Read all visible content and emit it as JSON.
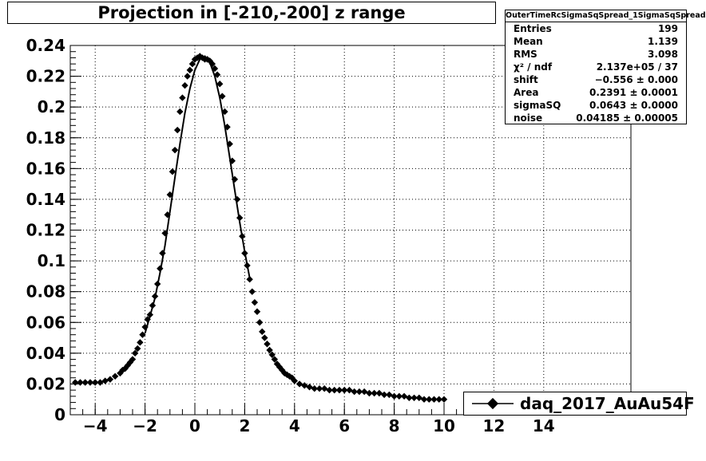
{
  "title": "Projection in [-210,-200] z range",
  "stats": {
    "name": "OuterTimeRcSigmaSqSpread_1SigmaSqSpread",
    "rows": [
      {
        "label": "Entries",
        "value": "199"
      },
      {
        "label": "Mean",
        "value": "1.139"
      },
      {
        "label": "RMS",
        "value": "3.098"
      },
      {
        "label": "χ² / ndf",
        "value": "2.137e+05 / 37"
      },
      {
        "label": "shift",
        "value": "−0.556 ± 0.000"
      },
      {
        "label": "Area",
        "value": "0.2391 ± 0.0001"
      },
      {
        "label": "sigmaSQ",
        "value": "0.0643 ± 0.0000"
      },
      {
        "label": "noise",
        "value": "0.04185 ± 0.00005"
      }
    ]
  },
  "legend": {
    "label": "daq_2017_AuAu54F"
  },
  "colors": {
    "axis": "#000000",
    "grid": "#000000",
    "marker": "#000000",
    "background": "#ffffff"
  },
  "chart_data": {
    "type": "scatter",
    "title": "Projection in [-210,-200] z range",
    "xlabel": "",
    "ylabel": "",
    "xlim": [
      -5,
      17.5
    ],
    "ylim": [
      0,
      0.24
    ],
    "grid": true,
    "legend_placement": "bottom-right",
    "x_ticks": [
      "−4",
      "−2",
      "0",
      "2",
      "4",
      "6",
      "8",
      "10",
      "12",
      "14"
    ],
    "x_tick_values": [
      -4,
      -2,
      0,
      2,
      4,
      6,
      8,
      10,
      12,
      14
    ],
    "y_ticks": [
      "0",
      "0.02",
      "0.04",
      "0.06",
      "0.08",
      "0.1",
      "0.12",
      "0.14",
      "0.16",
      "0.18",
      "0.2",
      "0.22",
      "0.24"
    ],
    "y_tick_values": [
      0,
      0.02,
      0.04,
      0.06,
      0.08,
      0.1,
      0.12,
      0.14,
      0.16,
      0.18,
      0.2,
      0.22,
      0.24
    ],
    "series": [
      {
        "name": "daq_2017_AuAu54F",
        "x": [
          -4.8,
          -4.6,
          -4.4,
          -4.2,
          -4.0,
          -3.8,
          -3.6,
          -3.4,
          -3.2,
          -3.0,
          -2.9,
          -2.8,
          -2.7,
          -2.6,
          -2.5,
          -2.4,
          -2.3,
          -2.2,
          -2.1,
          -2.0,
          -1.9,
          -1.8,
          -1.7,
          -1.6,
          -1.5,
          -1.4,
          -1.3,
          -1.2,
          -1.1,
          -1.0,
          -0.9,
          -0.8,
          -0.7,
          -0.6,
          -0.5,
          -0.4,
          -0.3,
          -0.2,
          -0.1,
          0.0,
          0.1,
          0.2,
          0.3,
          0.4,
          0.5,
          0.6,
          0.7,
          0.8,
          0.9,
          1.0,
          1.1,
          1.2,
          1.3,
          1.4,
          1.5,
          1.6,
          1.7,
          1.8,
          1.9,
          2.0,
          2.1,
          2.2,
          2.3,
          2.4,
          2.5,
          2.6,
          2.7,
          2.8,
          2.9,
          3.0,
          3.1,
          3.2,
          3.3,
          3.4,
          3.5,
          3.6,
          3.7,
          3.8,
          3.9,
          4.0,
          4.2,
          4.4,
          4.6,
          4.8,
          5.0,
          5.2,
          5.4,
          5.6,
          5.8,
          6.0,
          6.2,
          6.4,
          6.6,
          6.8,
          7.0,
          7.2,
          7.4,
          7.6,
          7.8,
          8.0,
          8.2,
          8.4,
          8.6,
          8.8,
          9.0,
          9.2,
          9.4,
          9.6,
          9.8,
          10.0
        ],
        "y": [
          0.021,
          0.021,
          0.021,
          0.021,
          0.021,
          0.021,
          0.022,
          0.023,
          0.025,
          0.027,
          0.029,
          0.03,
          0.032,
          0.034,
          0.036,
          0.04,
          0.043,
          0.047,
          0.052,
          0.057,
          0.062,
          0.065,
          0.071,
          0.077,
          0.085,
          0.095,
          0.105,
          0.118,
          0.13,
          0.143,
          0.158,
          0.172,
          0.185,
          0.197,
          0.206,
          0.214,
          0.22,
          0.224,
          0.228,
          0.231,
          0.232,
          0.233,
          0.232,
          0.231,
          0.231,
          0.23,
          0.228,
          0.225,
          0.221,
          0.215,
          0.207,
          0.197,
          0.187,
          0.176,
          0.165,
          0.153,
          0.14,
          0.128,
          0.116,
          0.105,
          0.097,
          0.088,
          0.08,
          0.073,
          0.067,
          0.06,
          0.054,
          0.05,
          0.046,
          0.042,
          0.039,
          0.036,
          0.033,
          0.031,
          0.029,
          0.027,
          0.026,
          0.025,
          0.024,
          0.022,
          0.02,
          0.019,
          0.018,
          0.017,
          0.017,
          0.017,
          0.016,
          0.016,
          0.016,
          0.016,
          0.016,
          0.015,
          0.015,
          0.015,
          0.014,
          0.014,
          0.014,
          0.013,
          0.013,
          0.012,
          0.012,
          0.012,
          0.011,
          0.011,
          0.011,
          0.01,
          0.01,
          0.01,
          0.01,
          0.01
        ]
      },
      {
        "name": "",
        "type": "line",
        "x": [
          -2.0,
          -1.8,
          -1.6,
          -1.4,
          -1.2,
          -1.0,
          -0.8,
          -0.6,
          -0.4,
          -0.2,
          0.0,
          0.2,
          0.4,
          0.6,
          0.8,
          1.0,
          1.2,
          1.4,
          1.6,
          1.8,
          2.0,
          2.2
        ],
        "y": [
          0.053,
          0.064,
          0.076,
          0.092,
          0.11,
          0.132,
          0.154,
          0.176,
          0.196,
          0.212,
          0.224,
          0.231,
          0.233,
          0.229,
          0.22,
          0.206,
          0.188,
          0.167,
          0.146,
          0.125,
          0.106,
          0.089
        ]
      }
    ]
  }
}
